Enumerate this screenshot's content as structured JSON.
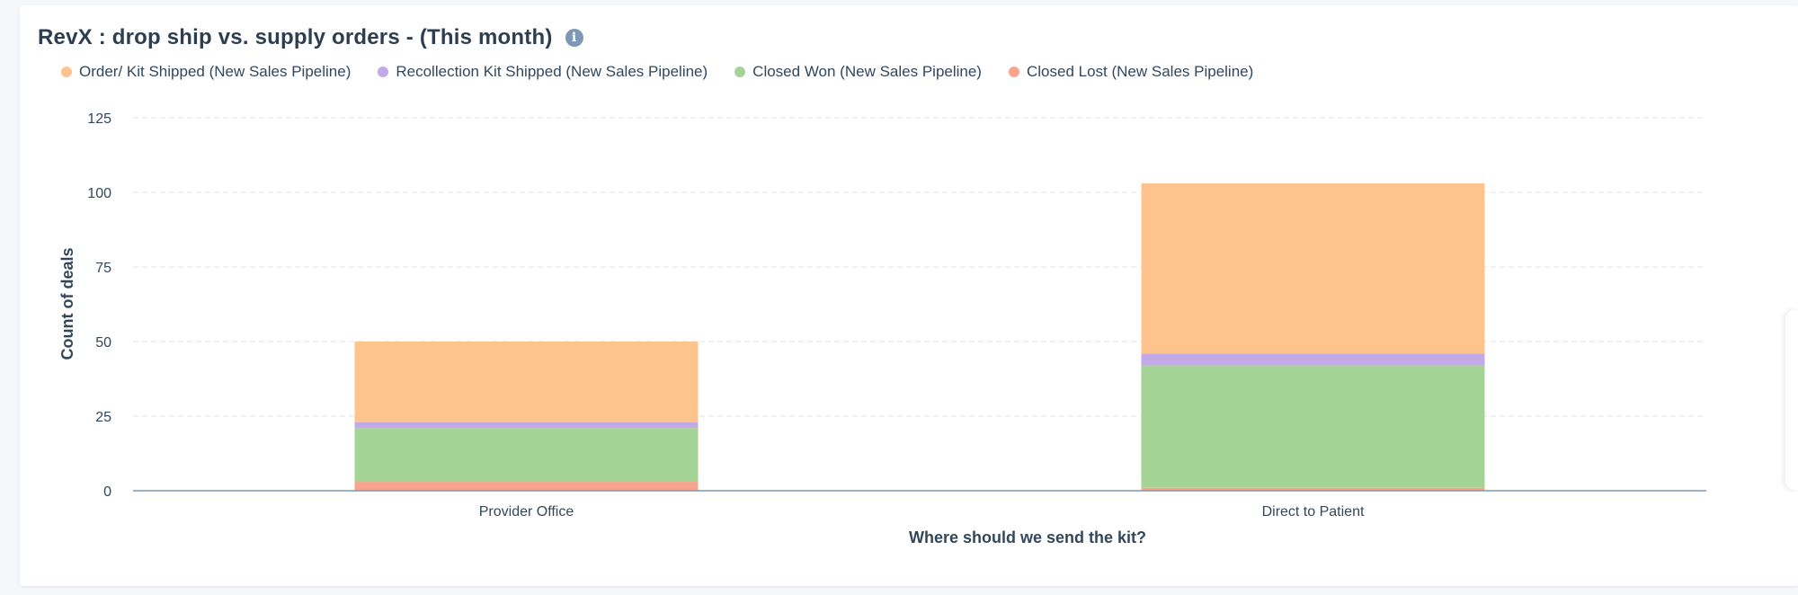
{
  "title": "RevX : drop ship vs. supply orders - (This month)",
  "info_icon": "info-icon",
  "chart_data": {
    "type": "bar",
    "stacked": true,
    "title": "RevX : drop ship vs. supply orders - (This month)",
    "xlabel": "Where should we send the kit?",
    "ylabel": "Count of deals",
    "ylim": [
      0,
      125
    ],
    "yticks": [
      "0",
      "25",
      "50",
      "75",
      "100",
      "125"
    ],
    "categories": [
      "Provider Office",
      "Direct to Patient"
    ],
    "grid": true,
    "legend_position": "top-left",
    "series": [
      {
        "name": "Closed Lost (New Sales Pipeline)",
        "color": "#f8a58f",
        "values": [
          3,
          1
        ]
      },
      {
        "name": "Closed Won (New Sales Pipeline)",
        "color": "#a4d495",
        "values": [
          18,
          41
        ]
      },
      {
        "name": "Recollection Kit Shipped (New Sales Pipeline)",
        "color": "#c2aae8",
        "values": [
          2,
          4
        ]
      },
      {
        "name": "Order/ Kit Shipped (New Sales Pipeline)",
        "color": "#fec48d",
        "values": [
          27,
          57
        ]
      }
    ],
    "legend_order": [
      3,
      2,
      1,
      0
    ]
  }
}
